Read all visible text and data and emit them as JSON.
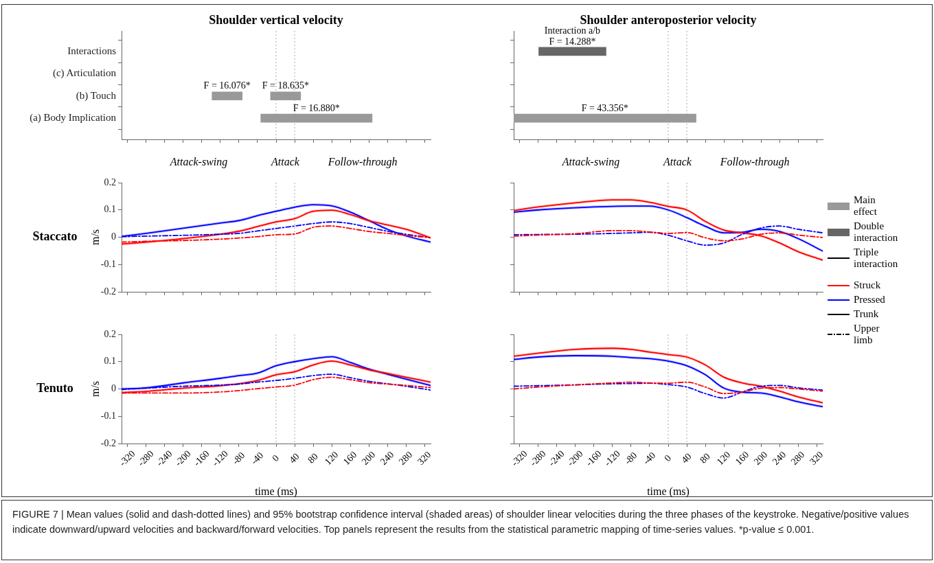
{
  "chart_data": [
    {
      "type": "bar",
      "orientation": "horizontal",
      "title": "Shoulder vertical velocity",
      "categories": [
        "Interactions",
        "(c) Articulation",
        "(b) Touch",
        "(a) Body Implication"
      ],
      "xlim": [
        -333,
        333
      ],
      "xticks": [
        -320,
        -280,
        -240,
        -200,
        -160,
        -120,
        -80,
        -40,
        0,
        40,
        80,
        120,
        160,
        200,
        240,
        280,
        320
      ],
      "tick_labels": "y",
      "series": [
        {
          "type": "bar",
          "color": "#999999",
          "values": [
            null,
            null,
            65,
            240
          ],
          "base": [
            null,
            null,
            -138,
            -33
          ]
        },
        {
          "type": "bar",
          "color": "#999999",
          "values": [
            null,
            null,
            65,
            null
          ],
          "base": [
            null,
            null,
            -12,
            null
          ]
        }
      ],
      "annotations": [
        "F = 16.076*",
        "F = 18.635*",
        "F = 16.880*"
      ],
      "ref_lines": [
        {
          "axis": "x",
          "value": 0,
          "color": "#aaaaaa",
          "line_style": "dotted"
        },
        {
          "axis": "x",
          "value": 40,
          "color": "#aaaaaa",
          "line_style": "dotted"
        }
      ]
    },
    {
      "type": "line",
      "title": "Staccato",
      "ylabel": "m/s",
      "x": [
        -333,
        -280,
        -200,
        -120,
        -80,
        -40,
        0,
        40,
        80,
        120,
        160,
        200,
        240,
        280,
        333
      ],
      "xlim": [
        -333,
        333
      ],
      "xticks": [
        -320,
        -280,
        -240,
        -200,
        -160,
        -120,
        -80,
        -40,
        0,
        40,
        80,
        120,
        160,
        200,
        240,
        280,
        320
      ],
      "ylim": [
        -0.2,
        0.2
      ],
      "yticks": [
        -0.2,
        -0.1,
        0,
        0.1,
        0.2
      ],
      "tick_labels": "y",
      "marker": "none",
      "series": [
        {
          "color": "#ff0000",
          "line_style": "dashdot",
          "values": [
            -0.018,
            -0.015,
            -0.012,
            -0.007,
            -0.003,
            0.002,
            0.009,
            0.012,
            0.036,
            0.041,
            0.032,
            0.021,
            0.014,
            0.007,
            -0.002
          ]
        },
        {
          "color": "#0000ff",
          "line_style": "dashdot",
          "values": [
            0.002,
            0.004,
            0.007,
            0.011,
            0.014,
            0.023,
            0.032,
            0.041,
            0.05,
            0.056,
            0.05,
            0.036,
            0.022,
            0.011,
            -0.002
          ]
        },
        {
          "color": "#ff0000",
          "line_style": "solid",
          "values": [
            -0.025,
            -0.018,
            -0.005,
            0.011,
            0.022,
            0.039,
            0.056,
            0.068,
            0.095,
            0.099,
            0.083,
            0.061,
            0.045,
            0.029,
            -0.002
          ],
          "lower": [
            -0.03,
            -0.023,
            -0.01,
            0.006,
            0.017,
            0.034,
            0.051,
            0.063,
            0.09,
            0.094,
            0.078,
            0.056,
            0.04,
            0.024,
            -0.007
          ],
          "upper": [
            -0.02,
            -0.013,
            0,
            0.016,
            0.027,
            0.044,
            0.061,
            0.073,
            0.1,
            0.104,
            0.088,
            0.066,
            0.05,
            0.034,
            0.003
          ]
        },
        {
          "color": "#0000ff",
          "line_style": "solid",
          "values": [
            0.003,
            0.014,
            0.033,
            0.052,
            0.061,
            0.079,
            0.095,
            0.11,
            0.119,
            0.115,
            0.092,
            0.061,
            0.029,
            0.005,
            -0.018
          ],
          "lower": [
            -0.002,
            0.009,
            0.028,
            0.047,
            0.056,
            0.074,
            0.09,
            0.105,
            0.114,
            0.11,
            0.087,
            0.056,
            0.024,
            0,
            -0.023
          ],
          "upper": [
            0.008,
            0.019,
            0.038,
            0.057,
            0.066,
            0.084,
            0.1,
            0.115,
            0.124,
            0.12,
            0.097,
            0.066,
            0.034,
            0.01,
            -0.013
          ]
        }
      ],
      "annotations": [
        "Attack-swing",
        "Attack",
        "Follow-through"
      ],
      "ref_lines": [
        {
          "axis": "x",
          "value": 0,
          "color": "#aaaaaa",
          "line_style": "dotted"
        },
        {
          "axis": "x",
          "value": 40,
          "color": "#aaaaaa",
          "line_style": "dotted"
        }
      ]
    },
    {
      "type": "line",
      "title": "Tenuto",
      "ylabel": "m/s",
      "xlabel": "time (ms)",
      "x": [
        -333,
        -280,
        -200,
        -120,
        -80,
        -40,
        0,
        40,
        80,
        120,
        160,
        200,
        240,
        280,
        333
      ],
      "xlim": [
        -333,
        333
      ],
      "xticks": [
        -320,
        -280,
        -240,
        -200,
        -160,
        -120,
        -80,
        -40,
        0,
        40,
        80,
        120,
        160,
        200,
        240,
        280,
        320
      ],
      "ylim": [
        -0.2,
        0.2
      ],
      "yticks": [
        -0.2,
        -0.1,
        0,
        0.1,
        0.2
      ],
      "marker": "none",
      "series": [
        {
          "color": "#ff0000",
          "line_style": "dashdot",
          "values": [
            -0.015,
            -0.015,
            -0.015,
            -0.011,
            -0.006,
            0.001,
            0.007,
            0.014,
            0.034,
            0.043,
            0.034,
            0.023,
            0.018,
            0.013,
            0.005
          ]
        },
        {
          "color": "#0000ff",
          "line_style": "dashdot",
          "values": [
            -0.002,
            0.003,
            0.01,
            0.014,
            0.018,
            0.025,
            0.031,
            0.039,
            0.049,
            0.054,
            0.041,
            0.028,
            0.019,
            0.01,
            -0.004
          ]
        },
        {
          "color": "#ff0000",
          "line_style": "solid",
          "values": [
            -0.013,
            -0.009,
            0.003,
            0.012,
            0.019,
            0.031,
            0.052,
            0.063,
            0.088,
            0.102,
            0.088,
            0.07,
            0.057,
            0.043,
            0.025
          ],
          "lower": [
            -0.018,
            -0.014,
            -0.002,
            0.007,
            0.014,
            0.026,
            0.047,
            0.058,
            0.083,
            0.097,
            0.083,
            0.065,
            0.052,
            0.038,
            0.02
          ],
          "upper": [
            -0.008,
            -0.004,
            0.008,
            0.017,
            0.024,
            0.036,
            0.057,
            0.068,
            0.093,
            0.107,
            0.093,
            0.075,
            0.062,
            0.048,
            0.03
          ]
        },
        {
          "color": "#0000ff",
          "line_style": "solid",
          "values": [
            0,
            0.004,
            0.022,
            0.039,
            0.049,
            0.058,
            0.085,
            0.1,
            0.111,
            0.118,
            0.097,
            0.073,
            0.054,
            0.036,
            0.013
          ],
          "lower": [
            -0.005,
            -0.001,
            0.017,
            0.034,
            0.044,
            0.053,
            0.08,
            0.095,
            0.106,
            0.113,
            0.092,
            0.068,
            0.049,
            0.031,
            0.008
          ],
          "upper": [
            0.005,
            0.009,
            0.027,
            0.044,
            0.054,
            0.063,
            0.09,
            0.105,
            0.116,
            0.123,
            0.102,
            0.078,
            0.059,
            0.041,
            0.018
          ]
        }
      ],
      "ref_lines": [
        {
          "axis": "x",
          "value": 0,
          "color": "#aaaaaa",
          "line_style": "dotted"
        },
        {
          "axis": "x",
          "value": 40,
          "color": "#aaaaaa",
          "line_style": "dotted"
        }
      ]
    },
    {
      "type": "bar",
      "orientation": "horizontal",
      "title": "Shoulder anteroposterior velocity",
      "categories": [
        null,
        null,
        null,
        null
      ],
      "xlim": [
        -333,
        333
      ],
      "xticks": [
        -320,
        -280,
        -240,
        -200,
        -160,
        -120,
        -80,
        -40,
        0,
        40,
        80,
        120,
        160,
        200,
        240,
        280,
        320
      ],
      "tick_labels": false,
      "legend": "right",
      "series": [
        {
          "name": "Main effect",
          "type": "bar",
          "color": "#999999",
          "values": [
            null,
            null,
            null,
            393
          ],
          "base": [
            null,
            null,
            null,
            -333
          ]
        },
        {
          "name": "Double interaction",
          "type": "bar",
          "color": "#666666",
          "values": [
            145,
            null,
            null,
            null
          ],
          "base": [
            -279,
            null,
            null,
            null
          ]
        },
        {
          "name": "Triple interaction",
          "type": "line",
          "color": "#000000",
          "line_style": "solid",
          "values": [
            null,
            null,
            null,
            null
          ]
        }
      ],
      "annotations": [
        "Interaction a/b\nF = 14.288*",
        "F = 43.356*"
      ],
      "ref_lines": [
        {
          "axis": "x",
          "value": 0,
          "color": "#aaaaaa",
          "line_style": "dotted"
        },
        {
          "axis": "x",
          "value": 40,
          "color": "#aaaaaa",
          "line_style": "dotted"
        }
      ]
    },
    {
      "type": "line",
      "x": [
        -333,
        -280,
        -200,
        -120,
        -80,
        -40,
        0,
        40,
        80,
        120,
        160,
        200,
        240,
        280,
        333
      ],
      "xlim": [
        -333,
        333
      ],
      "xticks": [
        -320,
        -280,
        -240,
        -200,
        -160,
        -120,
        -80,
        -40,
        0,
        40,
        80,
        120,
        160,
        200,
        240,
        280,
        320
      ],
      "ylim": [
        -0.2,
        0.2
      ],
      "yticks": [
        -0.2,
        -0.1,
        0,
        0.1,
        0.2
      ],
      "tick_labels": false,
      "marker": "none",
      "legend": "right",
      "series": [
        {
          "color": "#ff0000",
          "line_style": "dashdot",
          "values": [
            0.004,
            0.008,
            0.013,
            0.024,
            0.024,
            0.019,
            0.014,
            0.017,
            -0.002,
            -0.013,
            -0.006,
            0.011,
            0.016,
            0.008,
            -0.001
          ]
        },
        {
          "color": "#0000ff",
          "line_style": "dashdot",
          "values": [
            0.009,
            0.01,
            0.011,
            0.014,
            0.016,
            0.018,
            0.007,
            -0.013,
            -0.029,
            -0.021,
            0.011,
            0.034,
            0.041,
            0.029,
            0.016
          ]
        },
        {
          "name": "Struck",
          "color": "#ff0000",
          "line_style": "solid",
          "values": [
            0.098,
            0.111,
            0.126,
            0.137,
            0.137,
            0.128,
            0.113,
            0.1,
            0.058,
            0.026,
            0.016,
            0.005,
            -0.021,
            -0.053,
            -0.084
          ],
          "lower": [
            0.093,
            0.106,
            0.121,
            0.132,
            0.132,
            0.123,
            0.108,
            0.095,
            0.053,
            0.021,
            0.011,
            0,
            -0.026,
            -0.058,
            -0.089
          ],
          "upper": [
            0.103,
            0.116,
            0.131,
            0.142,
            0.142,
            0.133,
            0.118,
            0.105,
            0.063,
            0.031,
            0.021,
            0.01,
            -0.016,
            -0.048,
            -0.079
          ]
        },
        {
          "name": "Pressed",
          "color": "#0000ff",
          "line_style": "solid",
          "values": [
            0.092,
            0.1,
            0.108,
            0.113,
            0.114,
            0.114,
            0.1,
            0.072,
            0.04,
            0.016,
            0.018,
            0.029,
            0.021,
            -0.005,
            -0.051
          ],
          "lower": [
            0.087,
            0.095,
            0.103,
            0.108,
            0.109,
            0.109,
            0.095,
            0.067,
            0.035,
            0.011,
            0.013,
            0.024,
            0.016,
            -0.01,
            -0.056
          ],
          "upper": [
            0.097,
            0.105,
            0.113,
            0.118,
            0.119,
            0.119,
            0.105,
            0.077,
            0.045,
            0.021,
            0.023,
            0.034,
            0.026,
            0,
            -0.046
          ]
        },
        {
          "name": "Trunk",
          "color": "#000000",
          "line_style": "solid",
          "values": [
            null,
            null,
            null,
            null,
            null,
            null,
            null,
            null,
            null,
            null,
            null,
            null,
            null,
            null,
            null
          ]
        },
        {
          "name": "Upper limb",
          "color": "#000000",
          "line_style": "dashdot",
          "values": [
            null,
            null,
            null,
            null,
            null,
            null,
            null,
            null,
            null,
            null,
            null,
            null,
            null,
            null,
            null
          ]
        }
      ],
      "annotations": [
        "Attack-swing",
        "Attack",
        "Follow-through"
      ],
      "ref_lines": [
        {
          "axis": "x",
          "value": 0,
          "color": "#aaaaaa",
          "line_style": "dotted"
        },
        {
          "axis": "x",
          "value": 40,
          "color": "#aaaaaa",
          "line_style": "dotted"
        }
      ]
    },
    {
      "type": "line",
      "xlabel": "time (ms)",
      "x": [
        -333,
        -280,
        -200,
        -120,
        -80,
        -40,
        0,
        40,
        80,
        120,
        160,
        200,
        240,
        280,
        333
      ],
      "xlim": [
        -333,
        333
      ],
      "xticks": [
        -320,
        -280,
        -240,
        -200,
        -160,
        -120,
        -80,
        -40,
        0,
        40,
        80,
        120,
        160,
        200,
        240,
        280,
        320
      ],
      "ylim": [
        -0.2,
        0.2
      ],
      "yticks": [
        -0.2,
        -0.1,
        0,
        0.1,
        0.2
      ],
      "tick_labels": "x",
      "marker": "none",
      "series": [
        {
          "color": "#ff0000",
          "line_style": "dashdot",
          "values": [
            0,
            0.007,
            0.015,
            0.022,
            0.025,
            0.022,
            0.021,
            0.025,
            0.007,
            -0.017,
            -0.011,
            0.003,
            0.005,
            0,
            -0.008
          ]
        },
        {
          "color": "#0000ff",
          "line_style": "dashdot",
          "values": [
            0.01,
            0.012,
            0.015,
            0.019,
            0.02,
            0.021,
            0.016,
            0.007,
            -0.017,
            -0.033,
            -0.011,
            0.01,
            0.013,
            0.004,
            -0.004
          ]
        },
        {
          "color": "#ff0000",
          "line_style": "solid",
          "values": [
            0.12,
            0.131,
            0.145,
            0.149,
            0.145,
            0.135,
            0.126,
            0.117,
            0.088,
            0.043,
            0.022,
            0.01,
            -0.008,
            -0.029,
            -0.051
          ],
          "lower": [
            0.115,
            0.126,
            0.14,
            0.144,
            0.14,
            0.13,
            0.121,
            0.112,
            0.083,
            0.038,
            0.017,
            0.005,
            -0.013,
            -0.034,
            -0.056
          ],
          "upper": [
            0.125,
            0.136,
            0.15,
            0.154,
            0.15,
            0.14,
            0.131,
            0.122,
            0.093,
            0.048,
            0.027,
            0.015,
            -0.003,
            -0.024,
            -0.046
          ]
        },
        {
          "color": "#0000ff",
          "line_style": "solid",
          "values": [
            0.108,
            0.117,
            0.122,
            0.12,
            0.115,
            0.111,
            0.102,
            0.085,
            0.052,
            0.003,
            -0.012,
            -0.015,
            -0.029,
            -0.047,
            -0.065
          ],
          "lower": [
            0.103,
            0.112,
            0.117,
            0.115,
            0.11,
            0.106,
            0.097,
            0.08,
            0.047,
            -0.002,
            -0.017,
            -0.02,
            -0.034,
            -0.052,
            -0.07
          ],
          "upper": [
            0.113,
            0.122,
            0.127,
            0.125,
            0.12,
            0.116,
            0.107,
            0.09,
            0.057,
            0.008,
            -0.007,
            -0.01,
            -0.024,
            -0.042,
            -0.06
          ]
        }
      ],
      "annotations": [
        "FIGURE 7 | Mean values (solid and dash-dotted lines) and 95% bootstrap confidence interval (shaded areas) of shoulder linear velocities during the three phases of the keystroke. Negative/positive values indicate downward/upward velocities and backward/forward velocities. Top panels represent the results from the statistical parametric mapping of time-series values. *p-value ≤ 0.001."
      ],
      "ref_lines": [
        {
          "axis": "x",
          "value": 0,
          "color": "#aaaaaa",
          "line_style": "dotted"
        },
        {
          "axis": "x",
          "value": 40,
          "color": "#aaaaaa",
          "line_style": "dotted"
        }
      ]
    }
  ]
}
